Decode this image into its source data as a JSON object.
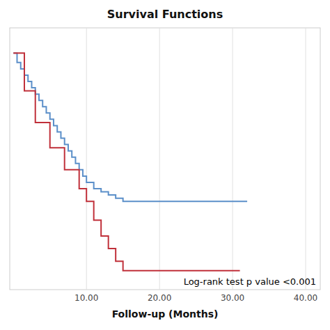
{
  "chart_data": {
    "type": "step",
    "title": "Survival Functions",
    "x_label": "Follow-up (Months)",
    "annotation": "Log-rank test p value <0.001",
    "xlim": [
      -0.5,
      42
    ],
    "ylim": [
      0.25,
      1.08
    ],
    "xticks": [
      {
        "value": 10.0,
        "label": "10.00"
      },
      {
        "value": 20.0,
        "label": "20.00"
      },
      {
        "value": 30.0,
        "label": "30.00"
      },
      {
        "value": 40.0,
        "label": "40.00"
      }
    ],
    "yticks": [],
    "grid": true,
    "tick_labels": "x",
    "series": [
      {
        "color": "#5b8fc9",
        "x": [
          0,
          0.5,
          1,
          1.5,
          2,
          2.5,
          3,
          3.5,
          4,
          4.5,
          5,
          5.5,
          6,
          6.5,
          7,
          7.5,
          8,
          8.5,
          9,
          9.5,
          10,
          11,
          12,
          13,
          14,
          15,
          16,
          17,
          18,
          19,
          32
        ],
        "values": [
          1.0,
          0.97,
          0.95,
          0.93,
          0.91,
          0.89,
          0.87,
          0.85,
          0.83,
          0.81,
          0.79,
          0.77,
          0.75,
          0.73,
          0.71,
          0.69,
          0.67,
          0.65,
          0.63,
          0.61,
          0.59,
          0.57,
          0.56,
          0.55,
          0.54,
          0.53,
          0.53,
          0.53,
          0.53,
          0.53,
          0.53
        ]
      },
      {
        "color": "#c0303a",
        "x": [
          0,
          1.5,
          3,
          5,
          7,
          9,
          10,
          11,
          12,
          13,
          14,
          15,
          16,
          17,
          18,
          31
        ],
        "values": [
          1.0,
          0.88,
          0.78,
          0.7,
          0.63,
          0.57,
          0.53,
          0.47,
          0.42,
          0.38,
          0.34,
          0.31,
          0.31,
          0.31,
          0.31,
          0.31
        ]
      }
    ]
  }
}
